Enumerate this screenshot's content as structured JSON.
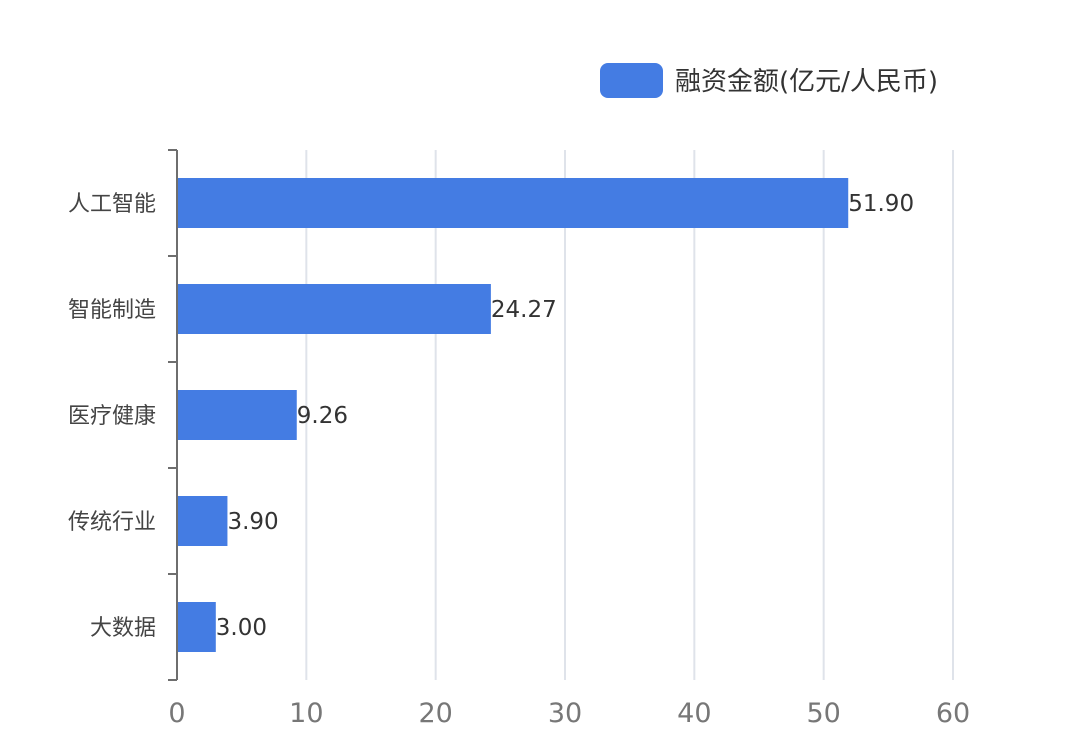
{
  "chart_data": {
    "type": "bar",
    "orientation": "horizontal",
    "categories": [
      "人工智能",
      "智能制造",
      "医疗健康",
      "传统行业",
      "大数据"
    ],
    "series": [
      {
        "name": "融资金额(亿元/人民币)",
        "values": [
          51.9,
          24.27,
          9.26,
          3.9,
          3.0
        ],
        "value_labels": [
          "51.90",
          "24.27",
          "9.26",
          "3.90",
          "3.00"
        ],
        "color": "#447ce3"
      }
    ],
    "xlim": [
      0,
      60
    ],
    "x_ticks": [
      0,
      10,
      20,
      30,
      40,
      50,
      60
    ],
    "grid": true,
    "legend_position": "top-right"
  }
}
